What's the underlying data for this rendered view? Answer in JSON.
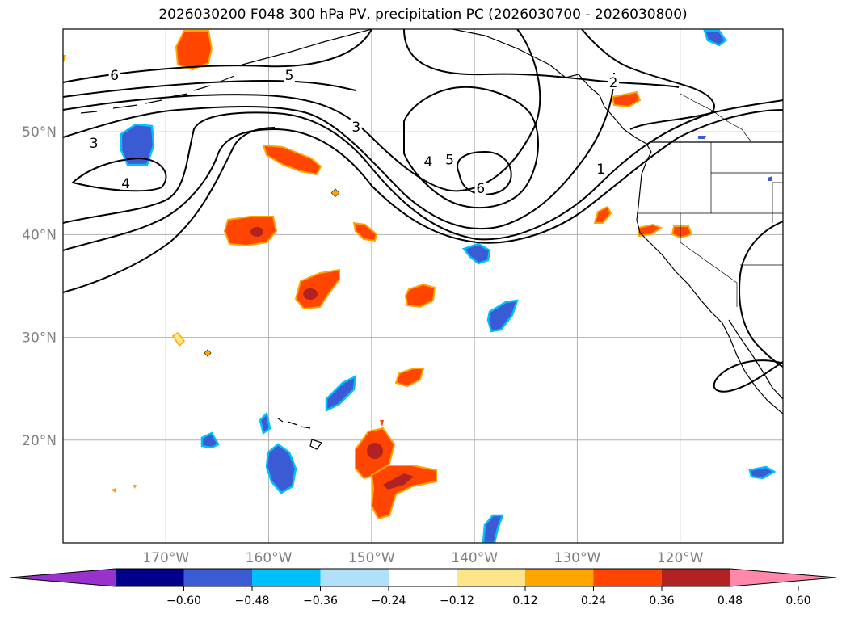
{
  "title": "2026030200 F048 300 hPa PV, precipitation PC (2026030700 - 2026030800)",
  "map": {
    "lon_range": [
      -180,
      -110
    ],
    "lat_range": [
      10,
      60
    ],
    "lat_gridlines": [
      {
        "value": 20,
        "label": "20°N"
      },
      {
        "value": 30,
        "label": "30°N"
      },
      {
        "value": 40,
        "label": "40°N"
      },
      {
        "value": 50,
        "label": "50°N"
      }
    ],
    "lon_gridlines": [
      {
        "value": -170,
        "label": "170°W"
      },
      {
        "value": -160,
        "label": "160°W"
      },
      {
        "value": -150,
        "label": "150°W"
      },
      {
        "value": -140,
        "label": "140°W"
      },
      {
        "value": -130,
        "label": "130°W"
      },
      {
        "value": -120,
        "label": "120°W"
      }
    ],
    "pv_contour_labels": [
      {
        "text": "6",
        "lon": -175,
        "lat": 55.5
      },
      {
        "text": "5",
        "lon": -158,
        "lat": 55.5
      },
      {
        "text": "2",
        "lon": -126.5,
        "lat": 54.8
      },
      {
        "text": "3",
        "lon": -177,
        "lat": 48.9
      },
      {
        "text": "3",
        "lon": -151.5,
        "lat": 50.5
      },
      {
        "text": "4",
        "lon": -173.9,
        "lat": 45
      },
      {
        "text": "4",
        "lon": -144.5,
        "lat": 47.1
      },
      {
        "text": "5",
        "lon": -142.4,
        "lat": 47.3
      },
      {
        "text": "6",
        "lon": -139.4,
        "lat": 44.5
      },
      {
        "text": "1",
        "lon": -127.7,
        "lat": 46.4
      }
    ]
  },
  "colorbar": {
    "colors": [
      "#9932cc",
      "#00008b",
      "#3a5bd3",
      "#00bfff",
      "#b0e0fa",
      "#ffffff",
      "#fde68a",
      "#ffa500",
      "#ff4500",
      "#b22222",
      "#ff88aa"
    ],
    "tick_labels": [
      "−0.60",
      "−0.48",
      "−0.36",
      "−0.24",
      "−0.12",
      "0.12",
      "0.24",
      "0.36",
      "0.48",
      "0.60"
    ]
  }
}
